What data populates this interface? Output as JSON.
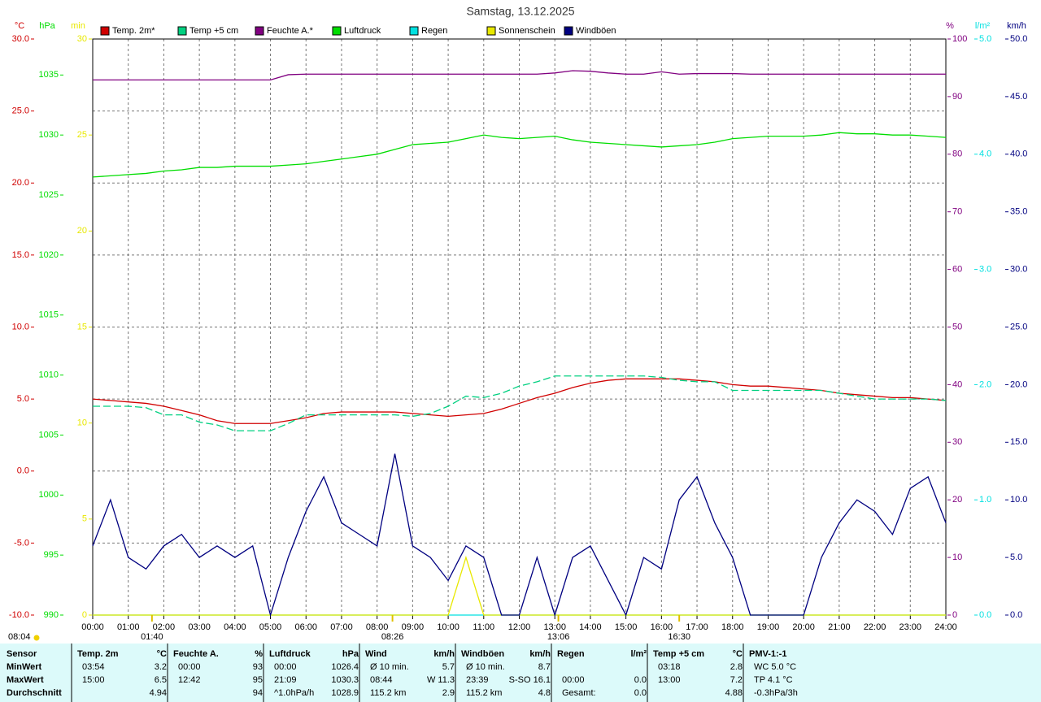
{
  "chart_data": {
    "type": "line",
    "title": "Samstag, 13.12.2025",
    "grid": true,
    "x": [
      0,
      0.5,
      1,
      1.5,
      2,
      2.5,
      3,
      3.5,
      4,
      4.5,
      5,
      5.5,
      6,
      6.5,
      7,
      7.5,
      8,
      8.5,
      9,
      9.5,
      10,
      10.5,
      11,
      11.5,
      12,
      12.5,
      13,
      13.5,
      14,
      14.5,
      15,
      15.5,
      16,
      16.5,
      17,
      17.5,
      18,
      18.5,
      19,
      19.5,
      20,
      20.5,
      21,
      21.5,
      22,
      22.5,
      23,
      23.5,
      24
    ],
    "xlim": [
      0,
      24
    ],
    "xticks": [
      {
        "value": 0,
        "label": "00:00"
      },
      {
        "value": 1,
        "label": "01:00"
      },
      {
        "value": 2,
        "label": "02:00"
      },
      {
        "value": 3,
        "label": "03:00"
      },
      {
        "value": 4,
        "label": "04:00"
      },
      {
        "value": 5,
        "label": "05:00"
      },
      {
        "value": 6,
        "label": "06:00"
      },
      {
        "value": 7,
        "label": "07:00"
      },
      {
        "value": 8,
        "label": "08:00"
      },
      {
        "value": 9,
        "label": "09:00"
      },
      {
        "value": 10,
        "label": "10:00"
      },
      {
        "value": 11,
        "label": "11:00"
      },
      {
        "value": 12,
        "label": "12:00"
      },
      {
        "value": 13,
        "label": "13:00"
      },
      {
        "value": 14,
        "label": "14:00"
      },
      {
        "value": 15,
        "label": "15:00"
      },
      {
        "value": 16,
        "label": "16:00"
      },
      {
        "value": 17,
        "label": "17:00"
      },
      {
        "value": 18,
        "label": "18:00"
      },
      {
        "value": 19,
        "label": "19:00"
      },
      {
        "value": 20,
        "label": "20:00"
      },
      {
        "value": 21,
        "label": "21:00"
      },
      {
        "value": 22,
        "label": "22:00"
      },
      {
        "value": 23,
        "label": "23:00"
      },
      {
        "value": 24,
        "label": "24:00"
      }
    ],
    "ylabel": "°C",
    "ylim": [
      -10,
      30
    ],
    "yticks": [
      {
        "value": -10,
        "label": "-10.0"
      },
      {
        "value": -5,
        "label": "-5.0"
      },
      {
        "value": 0,
        "label": "0.0"
      },
      {
        "value": 5,
        "label": "5.0"
      },
      {
        "value": 10,
        "label": "10.0"
      },
      {
        "value": 15,
        "label": "15.0"
      },
      {
        "value": 20,
        "label": "20.0"
      },
      {
        "value": 25,
        "label": "25.0"
      },
      {
        "value": 30,
        "label": "30.0"
      }
    ],
    "y2label": "hPa",
    "y2lim": [
      990,
      1038
    ],
    "y2ticks": [
      990,
      995,
      1000,
      1005,
      1010,
      1015,
      1020,
      1025,
      1030,
      1035
    ],
    "y3label": "min",
    "y3lim": [
      0,
      30
    ],
    "y3ticks": [
      0,
      5,
      10,
      15,
      20,
      25,
      30
    ],
    "y4label": "%",
    "y4lim": [
      0,
      100
    ],
    "y4ticks": [
      0,
      10,
      20,
      30,
      40,
      50,
      60,
      70,
      80,
      90,
      100
    ],
    "y5label": "l/m²",
    "y5lim": [
      0,
      5
    ],
    "y5ticks": [
      {
        "value": 0,
        "label": "0.0"
      },
      {
        "value": 1,
        "label": "1.0"
      },
      {
        "value": 2,
        "label": "2.0"
      },
      {
        "value": 3,
        "label": "3.0"
      },
      {
        "value": 4,
        "label": "4.0"
      },
      {
        "value": 5,
        "label": "5.0"
      }
    ],
    "y6label": "km/h",
    "y6lim": [
      0,
      50
    ],
    "y6ticks": [
      {
        "value": 0,
        "label": "0.0"
      },
      {
        "value": 5,
        "label": "5.0"
      },
      {
        "value": 10,
        "label": "10.0"
      },
      {
        "value": 15,
        "label": "15.0"
      },
      {
        "value": 20,
        "label": "20.0"
      },
      {
        "value": 25,
        "label": "25.0"
      },
      {
        "value": 30,
        "label": "30.0"
      },
      {
        "value": 35,
        "label": "35.0"
      },
      {
        "value": 40,
        "label": "40.0"
      },
      {
        "value": 45,
        "label": "45.0"
      },
      {
        "value": 50,
        "label": "50.0"
      }
    ],
    "series": [
      {
        "name": "Temp. 2m*",
        "color": "#d00000",
        "axis": "y",
        "values": [
          5.0,
          4.9,
          4.8,
          4.7,
          4.5,
          4.2,
          3.9,
          3.5,
          3.3,
          3.3,
          3.3,
          3.5,
          3.7,
          4.0,
          4.1,
          4.1,
          4.1,
          4.1,
          4.0,
          3.9,
          3.8,
          3.9,
          4.0,
          4.3,
          4.7,
          5.1,
          5.4,
          5.8,
          6.1,
          6.3,
          6.4,
          6.4,
          6.4,
          6.4,
          6.3,
          6.2,
          6.0,
          5.9,
          5.9,
          5.8,
          5.7,
          5.6,
          5.4,
          5.3,
          5.2,
          5.1,
          5.1,
          5.0,
          4.9
        ]
      },
      {
        "name": "Temp +5 cm",
        "color": "#00d080",
        "axis": "y",
        "dashed": true,
        "values": [
          4.5,
          4.5,
          4.5,
          4.4,
          3.9,
          3.9,
          3.4,
          3.2,
          2.8,
          2.8,
          2.8,
          3.3,
          3.9,
          3.9,
          3.9,
          3.9,
          3.9,
          3.9,
          3.8,
          4.0,
          4.5,
          5.2,
          5.1,
          5.4,
          5.9,
          6.2,
          6.6,
          6.6,
          6.6,
          6.6,
          6.6,
          6.6,
          6.5,
          6.3,
          6.2,
          6.2,
          5.6,
          5.6,
          5.6,
          5.6,
          5.6,
          5.6,
          5.4,
          5.2,
          5.0,
          5.0,
          5.0,
          5.0,
          4.9
        ]
      },
      {
        "name": "Feuchte A.*",
        "color": "#800080",
        "axis": "y4",
        "values": [
          92.9,
          92.9,
          92.9,
          92.9,
          92.9,
          92.9,
          92.9,
          92.9,
          92.9,
          92.9,
          92.9,
          93.8,
          93.9,
          93.9,
          93.9,
          93.9,
          93.9,
          93.9,
          93.9,
          93.9,
          93.9,
          93.9,
          93.9,
          93.9,
          93.9,
          93.9,
          94.1,
          94.5,
          94.4,
          94.1,
          93.9,
          93.9,
          94.3,
          93.9,
          94.0,
          94.0,
          94.0,
          93.9,
          93.9,
          93.9,
          93.9,
          93.9,
          93.9,
          93.9,
          93.9,
          93.9,
          93.9,
          93.9,
          93.9
        ]
      },
      {
        "name": "Luftdruck",
        "color": "#00dd00",
        "axis": "y2",
        "values": [
          1026.5,
          1026.6,
          1026.7,
          1026.8,
          1027.0,
          1027.1,
          1027.3,
          1027.3,
          1027.4,
          1027.4,
          1027.4,
          1027.5,
          1027.6,
          1027.8,
          1028.0,
          1028.2,
          1028.4,
          1028.8,
          1029.2,
          1029.3,
          1029.4,
          1029.7,
          1030.0,
          1029.8,
          1029.7,
          1029.8,
          1029.9,
          1029.6,
          1029.4,
          1029.3,
          1029.2,
          1029.1,
          1029.0,
          1029.1,
          1029.2,
          1029.4,
          1029.7,
          1029.8,
          1029.9,
          1029.9,
          1029.9,
          1030.0,
          1030.2,
          1030.1,
          1030.1,
          1030.0,
          1030.0,
          1029.9,
          1029.8
        ]
      },
      {
        "name": "Regen",
        "color": "#00e0e0",
        "axis": "y5",
        "values": [
          0,
          0,
          0,
          0,
          0,
          0,
          0,
          0,
          0,
          0,
          0,
          0,
          0,
          0,
          0,
          0,
          0,
          0,
          0,
          0,
          0,
          0,
          0,
          0,
          0,
          0,
          0,
          0,
          0,
          0,
          0,
          0,
          0,
          0,
          0,
          0,
          0,
          0,
          0,
          0,
          0,
          0,
          0,
          0,
          0,
          0,
          0,
          0,
          0
        ]
      },
      {
        "name": "Sonnenschein",
        "color": "#e8e800",
        "axis": "y3",
        "values": [
          0,
          0,
          0,
          0,
          0,
          0,
          0,
          0,
          0,
          0,
          0,
          0,
          0,
          0,
          0,
          0,
          0,
          0,
          0,
          0,
          0,
          3,
          0,
          0,
          0,
          0,
          0,
          0,
          0,
          0,
          0,
          0,
          0,
          0,
          0,
          0,
          0,
          0,
          0,
          0,
          0,
          0,
          0,
          0,
          0,
          0,
          0,
          0,
          0
        ]
      },
      {
        "name": "Windböen",
        "color": "#000080",
        "axis": "y6",
        "values": [
          6,
          10,
          5,
          4,
          6,
          7,
          5,
          6,
          5,
          6,
          0,
          5,
          9,
          12,
          8,
          7,
          6,
          14,
          6,
          5,
          3,
          6,
          5,
          0,
          0,
          5,
          0,
          5,
          6,
          3,
          0,
          5,
          4,
          10,
          12,
          8,
          5,
          0,
          0,
          0,
          0,
          5,
          8,
          10,
          9,
          7,
          11,
          12,
          8
        ]
      }
    ],
    "sunrise": "08:04",
    "events": [
      {
        "x": 1.667,
        "label": "01:40"
      },
      {
        "x": 8.433,
        "label": "08:26"
      },
      {
        "x": 13.1,
        "label": "13:06"
      },
      {
        "x": 16.5,
        "label": "16:30"
      }
    ]
  },
  "table": {
    "header": "Sensor",
    "row_labels": [
      "MinWert",
      "MaxWert",
      "Durchschnitt"
    ],
    "groups": [
      {
        "name": "Temp. 2m",
        "unit": "°C",
        "min": {
          "label": "03:54",
          "value": "3.2"
        },
        "max": {
          "label": "15:00",
          "value": "6.5"
        },
        "avg": {
          "value": "4.94"
        }
      },
      {
        "name": "Feuchte A.",
        "unit": "%",
        "min": {
          "label": "00:00",
          "value": "93"
        },
        "max": {
          "label": "12:42",
          "value": "95"
        },
        "avg": {
          "value": "94"
        }
      },
      {
        "name": "Luftdruck",
        "unit": "hPa",
        "min": {
          "label": "00:00",
          "value": "1026.4"
        },
        "max": {
          "label": "21:09",
          "value": "1030.3"
        },
        "avg": {
          "label": "^1.0hPa/h",
          "value": "1028.9"
        }
      },
      {
        "name": "Wind",
        "unit": "km/h",
        "min": {
          "label": "Ø 10 min.",
          "value": "5.7"
        },
        "max": {
          "label": "08:44",
          "value": "W 11.3"
        },
        "avg": {
          "label": "115.2 km",
          "value": "2.9"
        }
      },
      {
        "name": "Windböen",
        "unit": "km/h",
        "min": {
          "label": "Ø 10 min.",
          "value": "8.7"
        },
        "max": {
          "label": "23:39",
          "value": "S-SO 16.1"
        },
        "avg": {
          "label": "115.2 km",
          "value": "4.8"
        }
      },
      {
        "name": "Regen",
        "unit": "l/m²",
        "max": {
          "label": "00:00",
          "value": "0.0"
        },
        "avg": {
          "label": "Gesamt:",
          "value": "0.0"
        }
      },
      {
        "name": "Temp +5 cm",
        "unit": "°C",
        "min": {
          "label": "03:18",
          "value": "2.8"
        },
        "max": {
          "label": "13:00",
          "value": "7.2"
        },
        "avg": {
          "value": "4.88"
        }
      },
      {
        "name": "PMV-1:-1",
        "min": {
          "label": "WC 5.0 °C"
        },
        "max": {
          "label": "TP 4.1 °C"
        },
        "avg": {
          "label": "-0.3hPa/3h"
        }
      }
    ]
  }
}
